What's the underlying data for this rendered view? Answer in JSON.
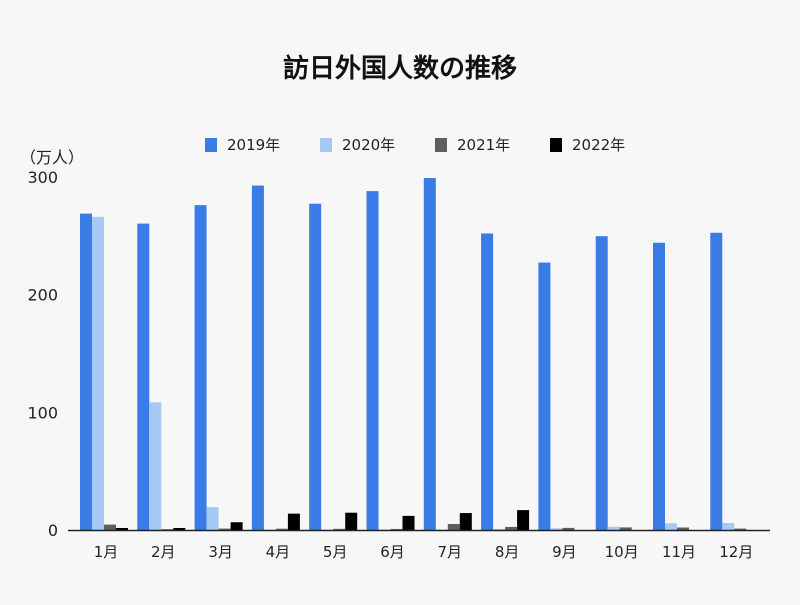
{
  "chart_data": {
    "type": "bar",
    "title": "訪日外国人数の推移",
    "ylabel": "（万人）",
    "ylim": [
      0,
      300
    ],
    "yticks": [
      0,
      100,
      200,
      300
    ],
    "categories": [
      "1月",
      "2月",
      "3月",
      "4月",
      "5月",
      "6月",
      "7月",
      "8月",
      "9月",
      "10月",
      "11月",
      "12月"
    ],
    "legend_position": "top",
    "series": [
      {
        "name": "2019年",
        "color": "#3a7be6",
        "values": [
          268.9,
          260.4,
          276.1,
          292.7,
          277.3,
          288.0,
          299.1,
          252.0,
          227.3,
          249.7,
          244.1,
          252.6
        ]
      },
      {
        "name": "2020年",
        "color": "#a5c8f4",
        "values": [
          266.1,
          108.5,
          19.4,
          0.3,
          0.2,
          0.3,
          0.4,
          0.9,
          1.4,
          2.8,
          5.7,
          5.9
        ]
      },
      {
        "name": "2021年",
        "color": "#5e5e5e",
        "values": [
          4.6,
          0.7,
          1.2,
          1.1,
          1.0,
          0.9,
          5.1,
          2.6,
          1.8,
          2.2,
          2.1,
          1.2
        ]
      },
      {
        "name": "2022年",
        "color": "#000000",
        "values": [
          1.7,
          1.7,
          6.6,
          13.9,
          14.7,
          12.0,
          14.4,
          16.9,
          null,
          null,
          null,
          null
        ]
      }
    ]
  }
}
